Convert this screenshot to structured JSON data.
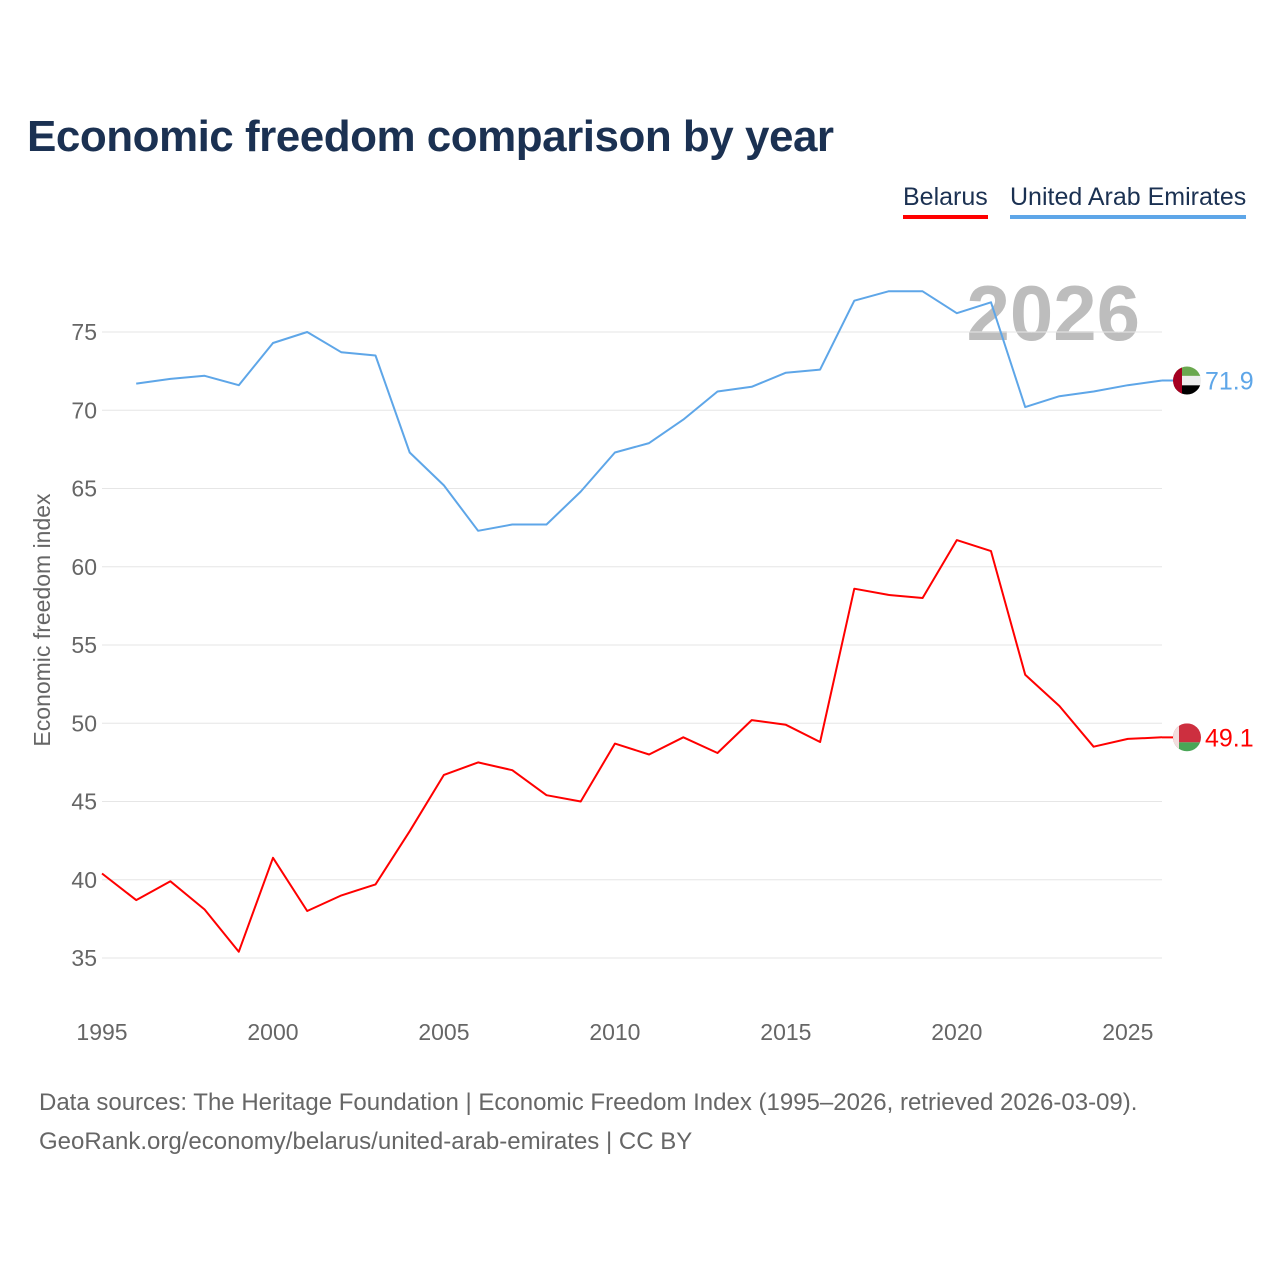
{
  "title": "Economic freedom comparison by year",
  "footer": {
    "line1": "Data sources: The Heritage Foundation | Economic Freedom Index (1995–2026, retrieved 2026-03-09).",
    "line2": "GeoRank.org/economy/belarus/united-arab-emirates | CC BY"
  },
  "chart_data": {
    "type": "line",
    "title": "Economic freedom comparison by year",
    "ylabel": "Economic freedom index",
    "xlabel": "",
    "xlim": [
      1995,
      2026
    ],
    "ylim": [
      32,
      78
    ],
    "yticks": [
      35,
      40,
      45,
      50,
      55,
      60,
      65,
      70,
      75
    ],
    "xticks": [
      1995,
      2000,
      2005,
      2010,
      2015,
      2020,
      2025
    ],
    "grid": true,
    "legend_position": "top-right",
    "year_watermark": "2026",
    "series": [
      {
        "name": "Belarus",
        "color": "#ff0000",
        "end_label": "49.1",
        "flag": "belarus-flag",
        "x": [
          1995,
          1996,
          1997,
          1998,
          1999,
          2000,
          2001,
          2002,
          2003,
          2004,
          2005,
          2006,
          2007,
          2008,
          2009,
          2010,
          2011,
          2012,
          2013,
          2014,
          2015,
          2016,
          2017,
          2018,
          2019,
          2020,
          2021,
          2022,
          2023,
          2024,
          2025,
          2026
        ],
        "values": [
          40.4,
          38.7,
          39.9,
          38.1,
          35.4,
          41.4,
          38.0,
          39.0,
          39.7,
          43.1,
          46.7,
          47.5,
          47.0,
          45.4,
          45.0,
          48.7,
          48.0,
          49.1,
          48.1,
          50.2,
          49.9,
          48.8,
          58.6,
          58.2,
          58.0,
          61.7,
          61.0,
          53.1,
          51.1,
          48.5,
          49.0,
          49.1
        ]
      },
      {
        "name": "United Arab Emirates",
        "color": "#5ea6e8",
        "end_label": "71.9",
        "flag": "uae-flag",
        "x": [
          1996,
          1997,
          1998,
          1999,
          2000,
          2001,
          2002,
          2003,
          2004,
          2005,
          2006,
          2007,
          2008,
          2009,
          2010,
          2011,
          2012,
          2013,
          2014,
          2015,
          2016,
          2017,
          2018,
          2019,
          2020,
          2021,
          2022,
          2023,
          2024,
          2025,
          2026
        ],
        "values": [
          71.7,
          72.0,
          72.2,
          71.6,
          74.3,
          75.0,
          73.7,
          73.5,
          67.3,
          65.2,
          62.3,
          62.7,
          62.7,
          64.8,
          67.3,
          67.9,
          69.4,
          71.2,
          71.5,
          72.4,
          72.6,
          77.0,
          77.6,
          77.6,
          76.2,
          76.9,
          70.2,
          70.9,
          71.2,
          71.6,
          71.9
        ]
      }
    ]
  }
}
